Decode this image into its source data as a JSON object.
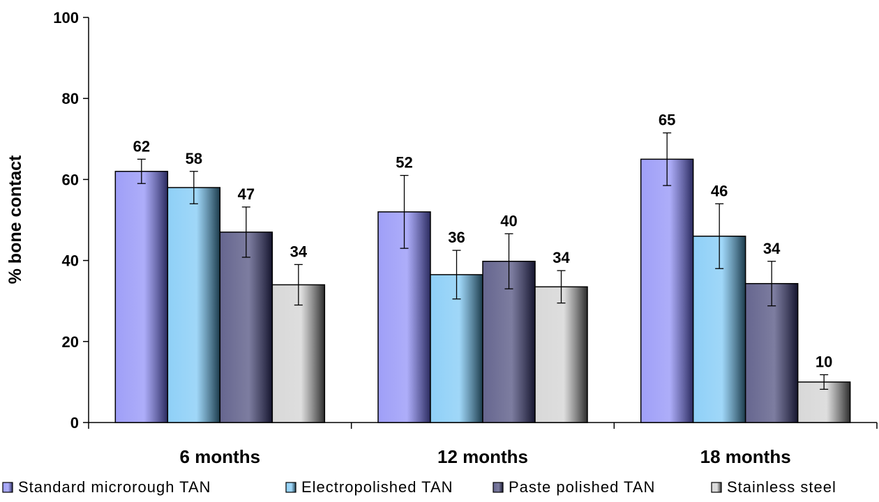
{
  "chart_data": {
    "type": "bar",
    "title": "",
    "xlabel": "",
    "ylabel": "% bone contact",
    "ylim": [
      0,
      100
    ],
    "yticks": [
      0,
      20,
      40,
      60,
      80,
      100
    ],
    "grid": false,
    "legend_position": "bottom",
    "categories": [
      "6 months",
      "12 months",
      "18 months"
    ],
    "series": [
      {
        "name": "Standard microrough TAN",
        "values": [
          62,
          52,
          65
        ],
        "errors": [
          3,
          9,
          6.5
        ],
        "labels": [
          "62",
          "52",
          "65"
        ],
        "color_light": "#9f9ff8",
        "color_dark": "#2a2a5e"
      },
      {
        "name": "Electropolished TAN",
        "values": [
          58,
          36.5,
          46
        ],
        "errors": [
          4,
          6,
          8
        ],
        "labels": [
          "58",
          "36",
          "46"
        ],
        "color_light": "#8fd0f7",
        "color_dark": "#1b3a4a"
      },
      {
        "name": "Paste polished TAN",
        "values": [
          47,
          39.8,
          34.3
        ],
        "errors": [
          6.2,
          6.8,
          5.5
        ],
        "labels": [
          "47",
          "40",
          "34"
        ],
        "color_light": "#66668f",
        "color_dark": "#15152e"
      },
      {
        "name": "Stainless steel",
        "values": [
          34,
          33.5,
          10
        ],
        "errors": [
          5,
          4,
          1.8
        ],
        "labels": [
          "34",
          "34",
          "10"
        ],
        "color_light": "#d8d8d8",
        "color_dark": "#2c2c2c"
      }
    ]
  }
}
